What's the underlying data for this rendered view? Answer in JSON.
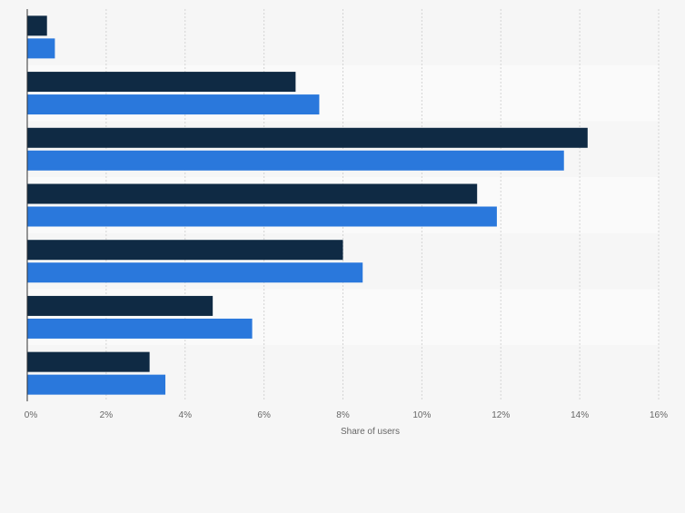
{
  "chart_data": {
    "type": "bar",
    "orientation": "horizontal",
    "categories": [
      "",
      "",
      "",
      "",
      "",
      "",
      ""
    ],
    "series": [
      {
        "values": [
          0.5,
          6.8,
          14.2,
          11.4,
          8.0,
          4.7,
          3.1
        ]
      },
      {
        "values": [
          0.7,
          7.4,
          13.6,
          11.9,
          8.5,
          5.7,
          3.5
        ]
      }
    ],
    "series_colors": [
      "#0f2a44",
      "#2a78dc"
    ],
    "xlabel": "Share of users",
    "ylabel": "",
    "xlim": [
      0,
      16
    ],
    "xticks": [
      0,
      2,
      4,
      6,
      8,
      10,
      12,
      14,
      16
    ],
    "xtick_labels": [
      "0%",
      "2%",
      "4%",
      "6%",
      "8%",
      "10%",
      "12%",
      "14%",
      "16%"
    ],
    "grid": "vertical dashed",
    "legend": "none"
  }
}
